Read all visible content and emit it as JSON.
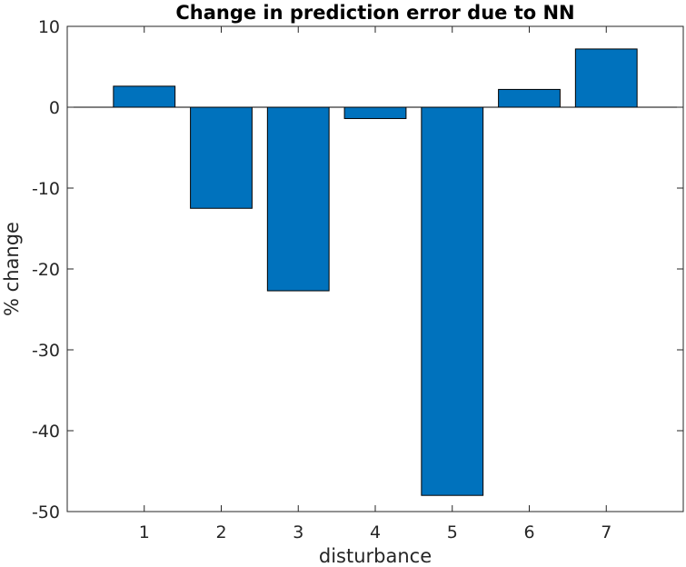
{
  "chart_data": {
    "type": "bar",
    "title": "Change in prediction error due to NN",
    "xlabel": "disturbance",
    "ylabel": "% change",
    "categories": [
      "1",
      "2",
      "3",
      "4",
      "5",
      "6",
      "7"
    ],
    "values": [
      2.6,
      -12.5,
      -22.7,
      -1.4,
      -48.0,
      2.2,
      7.2
    ],
    "ylim": [
      -50,
      10
    ],
    "yticks": [
      10,
      0,
      -10,
      -20,
      -30,
      -40,
      -50
    ],
    "ytick_labels": [
      "10",
      "0",
      "-10",
      "-20",
      "-30",
      "-40",
      "-50"
    ],
    "bar_color": "#0072BD",
    "grid": false,
    "legend": "none"
  }
}
